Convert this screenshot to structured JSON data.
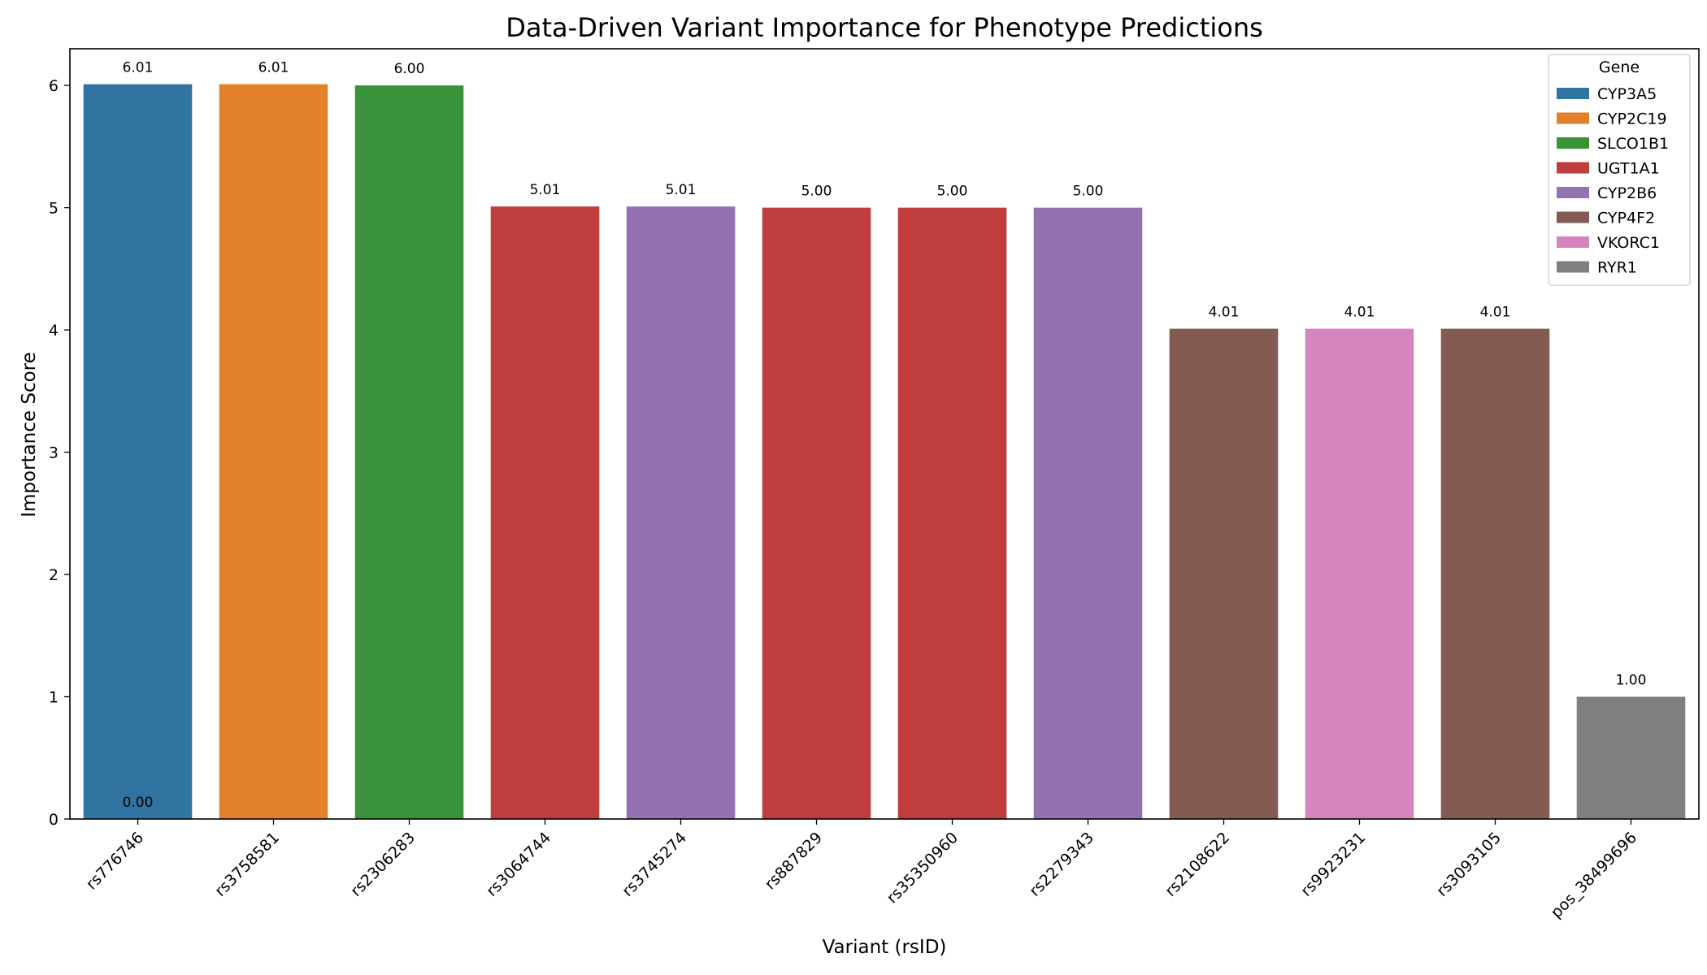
{
  "chart_data": {
    "type": "bar",
    "title": "Data-Driven Variant Importance for Phenotype Predictions",
    "xlabel": "Variant (rsID)",
    "ylabel": "Importance Score",
    "ylim": [
      0,
      6.3
    ],
    "yticks": [
      "0",
      "1",
      "2",
      "3",
      "4",
      "5",
      "6"
    ],
    "grid": false,
    "legend": {
      "title": "Gene",
      "placement": "top-right",
      "entries": [
        {
          "name": "CYP3A5",
          "color": "#3274a1"
        },
        {
          "name": "CYP2C19",
          "color": "#e1812c"
        },
        {
          "name": "SLCO1B1",
          "color": "#3a923a"
        },
        {
          "name": "UGT1A1",
          "color": "#c03d3e"
        },
        {
          "name": "CYP2B6",
          "color": "#9372b2"
        },
        {
          "name": "CYP4F2",
          "color": "#845b53"
        },
        {
          "name": "VKORC1",
          "color": "#d684bd"
        },
        {
          "name": "RYR1",
          "color": "#7f7f7f"
        }
      ]
    },
    "categories": [
      "rs776746",
      "rs3758581",
      "rs2306283",
      "rs3064744",
      "rs3745274",
      "rs887829",
      "rs35350960",
      "rs2279343",
      "rs2108622",
      "rs9923231",
      "rs3093105",
      "pos_38499696"
    ],
    "genes": [
      "CYP3A5",
      "CYP2C19",
      "SLCO1B1",
      "UGT1A1",
      "CYP2B6",
      "UGT1A1",
      "UGT1A1",
      "CYP2B6",
      "CYP4F2",
      "VKORC1",
      "CYP4F2",
      "RYR1"
    ],
    "values": [
      6.01,
      6.01,
      6.0,
      5.01,
      5.01,
      5.0,
      5.0,
      5.0,
      4.01,
      4.01,
      4.01,
      1.0
    ],
    "value_labels": [
      "6.01",
      "6.01",
      "6.00",
      "5.01",
      "5.01",
      "5.00",
      "5.00",
      "5.00",
      "4.01",
      "4.01",
      "4.01",
      "1.00"
    ],
    "extra_annotations": [
      {
        "category": "rs776746",
        "value": 0,
        "text": "0.00"
      }
    ]
  }
}
